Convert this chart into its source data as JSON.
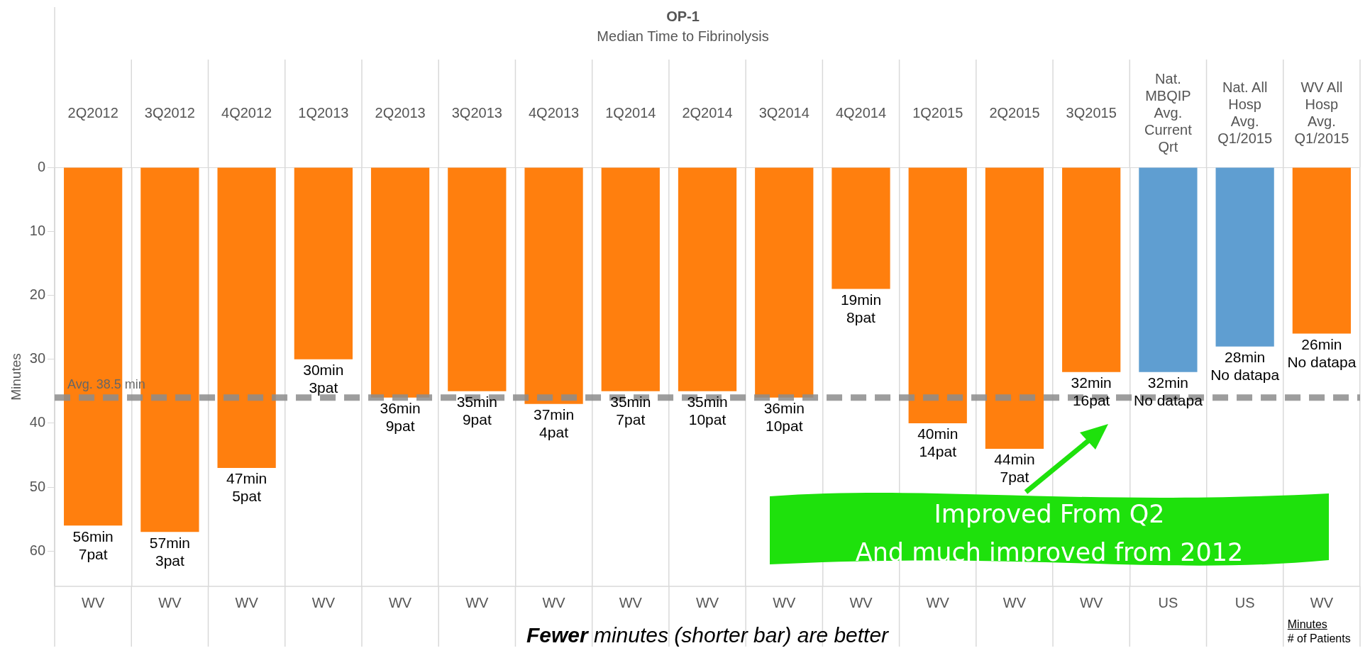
{
  "chart_data": {
    "type": "bar",
    "title": "OP-1",
    "subtitle": "Median Time to Fibrinolysis",
    "ylabel": "Minutes",
    "categories": [
      "2Q2012",
      "3Q2012",
      "4Q2012",
      "1Q2013",
      "2Q2013",
      "3Q2013",
      "4Q2013",
      "1Q2014",
      "2Q2014",
      "3Q2014",
      "4Q2014",
      "1Q2015",
      "2Q2015",
      "3Q2015",
      "Nat.\nMBQIP\nAvg.\nCurrent\nQrt",
      "Nat. All\nHosp\nAvg.\nQ1/2015",
      "WV All\nHosp\nAvg.\nQ1/2015"
    ],
    "values": [
      56,
      57,
      47,
      30,
      36,
      35,
      37,
      35,
      35,
      36,
      19,
      40,
      44,
      32,
      32,
      28,
      26
    ],
    "colors": [
      "#ff7f0e",
      "#ff7f0e",
      "#ff7f0e",
      "#ff7f0e",
      "#ff7f0e",
      "#ff7f0e",
      "#ff7f0e",
      "#ff7f0e",
      "#ff7f0e",
      "#ff7f0e",
      "#ff7f0e",
      "#ff7f0e",
      "#ff7f0e",
      "#ff7f0e",
      "#5f9ed1",
      "#5f9ed1",
      "#ff7f0e"
    ],
    "value_labels": [
      "56min\n7pat",
      "57min\n3pat",
      "47min\n5pat",
      "30min\n3pat",
      "36min\n9pat",
      "35min\n9pat",
      "37min\n4pat",
      "35min\n7pat",
      "35min\n10pat",
      "36min\n10pat",
      "19min\n8pat",
      "40min\n14pat",
      "44min\n7pat",
      "32min\n16pat",
      "32min\nNo datapa",
      "28min\nNo datapa",
      "26min\nNo datapa"
    ],
    "ylim": [
      65.5,
      0
    ],
    "yticks": [
      0,
      10,
      20,
      30,
      40,
      50,
      60
    ],
    "grid": "x",
    "legend": false,
    "ref_lines": [
      {
        "axis": "y",
        "value": 36,
        "label": "Avg. 38.5 min",
        "color": "#8c8c8c",
        "line_style": "dashed"
      }
    ],
    "annotations": [
      "WV",
      "WV",
      "WV",
      "WV",
      "WV",
      "WV",
      "WV",
      "WV",
      "WV",
      "WV",
      "WV",
      "WV",
      "WV",
      "WV",
      "US",
      "US",
      "WV",
      "Fewer minutes (shorter bar) are better",
      "Improved From Q2\nAnd much improved from 2012",
      "Minutes\n# of Patients"
    ]
  }
}
